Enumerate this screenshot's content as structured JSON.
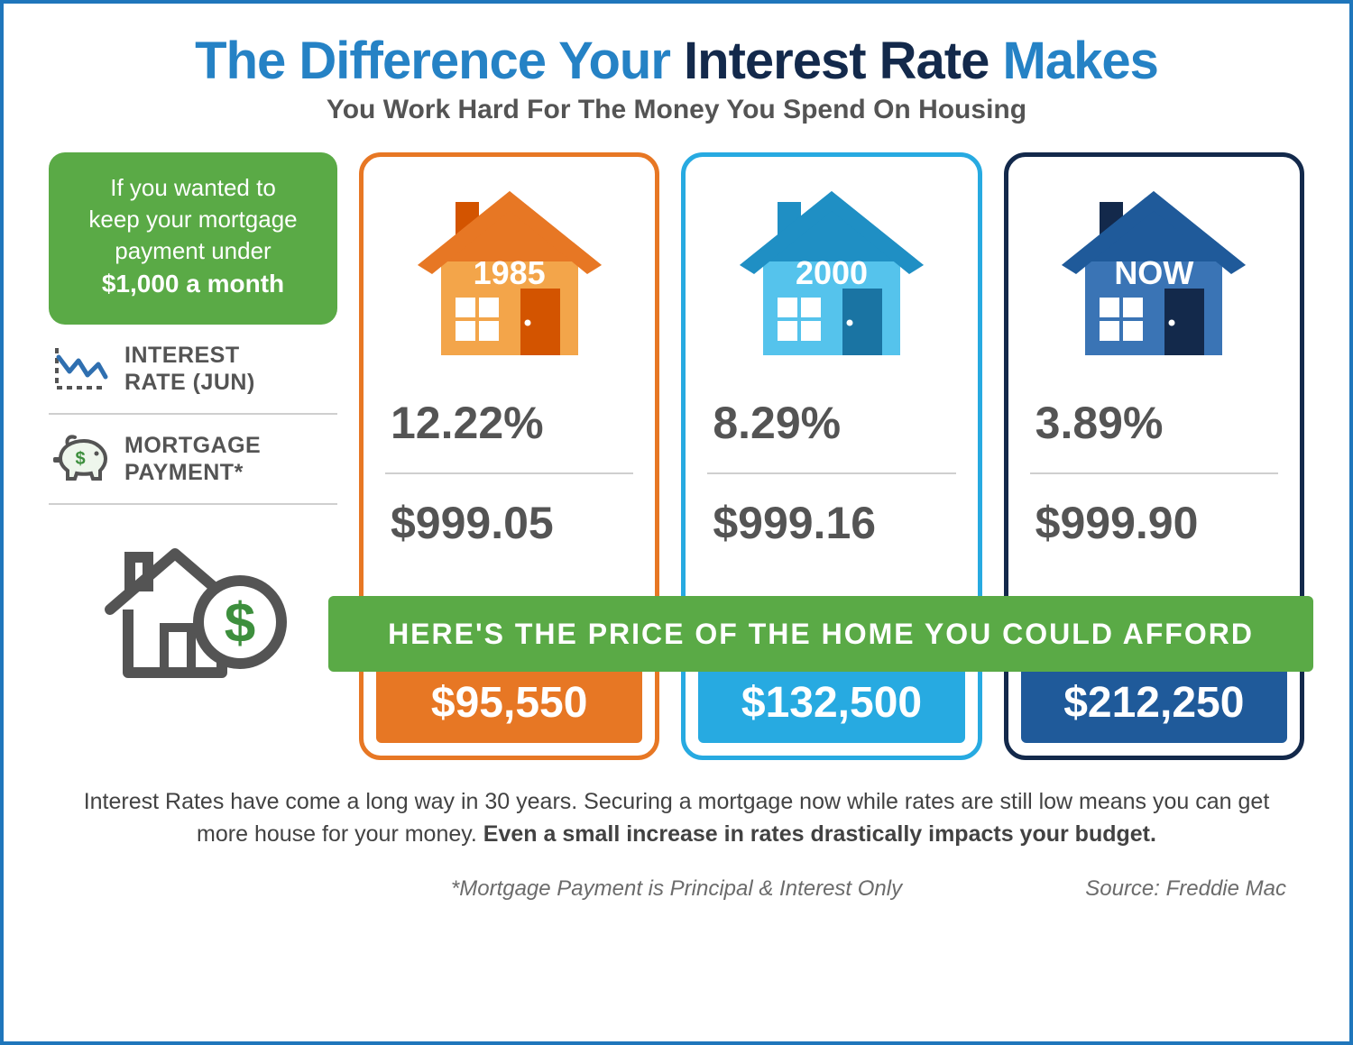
{
  "title": {
    "part1": "The Difference Your",
    "part2": "Interest Rate",
    "part3": "Makes",
    "color1": "#2582c5",
    "color2": "#13294b",
    "color3": "#2582c5",
    "fontsize": 58
  },
  "subtitle": {
    "text": "You Work Hard For The Money You Spend On Housing",
    "color": "#545454",
    "fontsize": 30
  },
  "callout": {
    "line1": "If you wanted to",
    "line2": "keep your mortgage",
    "line3": "payment under",
    "strong": "$1,000 a month",
    "bg": "#5aaa46",
    "fg": "#ffffff"
  },
  "row_labels": {
    "interest": {
      "line1": "INTEREST",
      "line2": "RATE (JUN)"
    },
    "mortgage": {
      "line1": "MORTGAGE",
      "line2": "PAYMENT*"
    },
    "text_color": "#545454",
    "divider_color": "#cfcfcf"
  },
  "band": {
    "text": "HERE'S THE PRICE OF THE HOME YOU COULD AFFORD",
    "bg": "#5aaa46",
    "fg": "#ffffff"
  },
  "cards": [
    {
      "year": "1985",
      "interest": "12.22%",
      "mortgage": "$999.05",
      "price": "$95,550",
      "border_color": "#e77724",
      "price_bg": "#e77724",
      "house_body": "#f3a54a",
      "house_roof": "#e77724",
      "house_door": "#d35400",
      "house_chimney": "#d35400"
    },
    {
      "year": "2000",
      "interest": "8.29%",
      "mortgage": "$999.16",
      "price": "$132,500",
      "border_color": "#27aae1",
      "price_bg": "#27aae1",
      "house_body": "#55c3ec",
      "house_roof": "#1f8fc4",
      "house_door": "#1a74a3",
      "house_chimney": "#1f8fc4"
    },
    {
      "year": "NOW",
      "interest": "3.89%",
      "mortgage": "$999.90",
      "price": "$212,250",
      "border_color": "#13294b",
      "price_bg": "#1f5a9a",
      "house_body": "#3a74b5",
      "house_roof": "#1f5a9a",
      "house_door": "#13294b",
      "house_chimney": "#13294b"
    }
  ],
  "bottom": {
    "plain": "Interest Rates have come a long way in 30 years. Securing a mortgage now while rates are still low means you can get more house for your money. ",
    "bold": "Even a small increase in rates drastically impacts your budget."
  },
  "footnote": "*Mortgage Payment is Principal & Interest Only",
  "source": "Source: Freddie Mac",
  "frame_border": "#1f76bb",
  "background": "#ffffff",
  "stat_color": "#545454",
  "icons": {
    "chart_stroke": "#545454",
    "chart_line": "#2f6fb0",
    "pig_stroke": "#545454",
    "pig_fill": "#dfeedd",
    "pig_dollar": "#3d8f3d",
    "house_stroke": "#545454",
    "dollar_circle": "#3d8f3d"
  }
}
